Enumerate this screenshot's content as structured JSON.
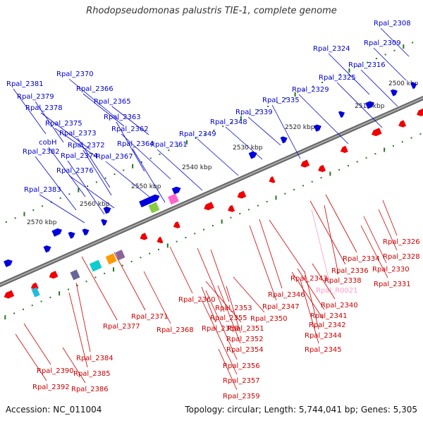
{
  "header": {
    "title": "Rhodopseudomonas palustris TIE-1, complete genome"
  },
  "footer": {
    "accession": "Accession: NC_011004",
    "topology": "Topology: circular; Length: 5,744,041 bp; Genes: 5,305"
  },
  "colors": {
    "forward": "#0000dd",
    "reverse": "#ee0000",
    "rna": "#ff99cc",
    "backbone": "#888888",
    "tick": "#227722",
    "label_top": "#0000cc",
    "label_bottom": "#cc0000",
    "label_rna": "#ff99cc"
  },
  "scale_labels": [
    "2500 kbp",
    "2510 kbp",
    "2520 kbp",
    "2530 kbp",
    "2540 kbp",
    "2550 kbp",
    "2560 kbp",
    "2570 kbp"
  ],
  "top_labels": [
    "Rpal_2308",
    "Rpal_2309",
    "Rpal_2316",
    "Rpal_2324",
    "Rpal_2325",
    "Rpal_2329",
    "Rpal_2335",
    "Rpal_2339",
    "Rpal_2348",
    "Rpal_2349",
    "Rpal_2361",
    "Rpal_2362",
    "Rpal_2363",
    "Rpal_2364",
    "Rpal_2365",
    "Rpal_2366",
    "Rpal_2367",
    "Rpal_2370",
    "Rpal_2372",
    "Rpal_2373",
    "Rpal_2374",
    "Rpal_2375",
    "Rpal_2376",
    "Rpal_2378",
    "Rpal_2379",
    "Rpal_2381",
    "cobH",
    "Rpal_2382",
    "Rpal_2383"
  ],
  "bottom_labels": [
    "Rpal_2326",
    "Rpal_2328",
    "Rpal_2330",
    "Rpal_2331",
    "Rpal_2334",
    "Rpal_2336",
    "Rpal_2338",
    "Rpal_R0021",
    "Rpal_2340",
    "Rpal_2341",
    "Rpal_2342",
    "Rpal_2343",
    "Rpal_2344",
    "Rpal_2345",
    "Rpal_2346",
    "Rpal_2347",
    "Rpal_2350",
    "Rpal_2351",
    "Rpal_2352",
    "Rpal_2353",
    "Rpal_2354",
    "Rpal_2355",
    "Rpal_2356",
    "Rpal_2357",
    "Rpal_2358",
    "Rpal_2359",
    "Rpal_2360",
    "Rpal_2368",
    "Rpal_2371",
    "Rpal_2377",
    "Rpal_2384",
    "Rpal_2385",
    "Rpal_2386",
    "Rpal_2390",
    "Rpal_2392"
  ]
}
